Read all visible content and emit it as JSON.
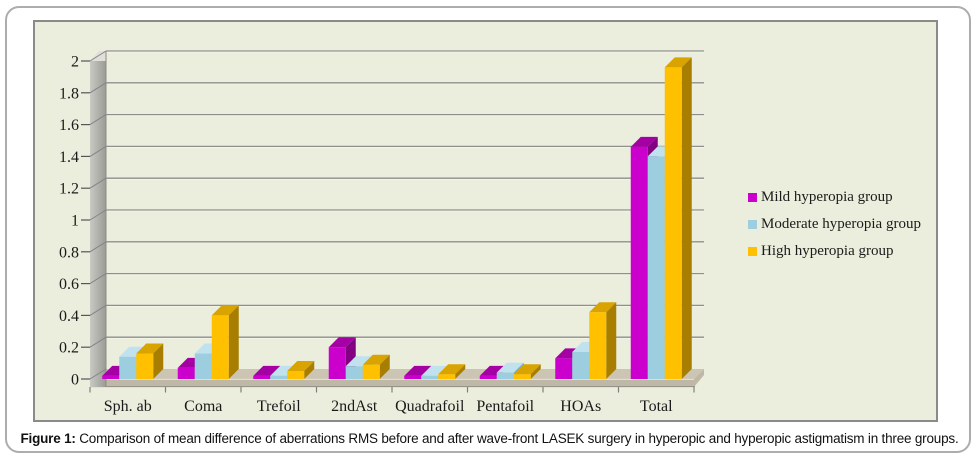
{
  "figure": {
    "caption_prefix": "Figure 1:",
    "caption_text": " Comparison of mean difference of aberrations RMS before and after wave-front LASEK surgery in hyperopic and hyperopic astigmatism in three groups."
  },
  "chart_data": {
    "type": "bar",
    "style": "3d-clustered-column",
    "title": "",
    "xlabel": "",
    "ylabel": "",
    "ylim": [
      0,
      2
    ],
    "grid": true,
    "legend_position": "right",
    "categories": [
      "Sph. ab",
      "Coma",
      "Trefoil",
      "2ndAst",
      "Quadrafoil",
      "Pentafoil",
      "HOAs",
      "Total"
    ],
    "series": [
      {
        "name": "Mild hyperopia group",
        "color": "#cc00cc",
        "top_color": "#a400a4",
        "side_color": "#830083",
        "values": [
          0.02,
          0.07,
          0.02,
          0.2,
          0.02,
          0.02,
          0.13,
          1.46
        ]
      },
      {
        "name": "Moderate hyperopia group",
        "color": "#9ccee0",
        "top_color": "#c0e2ee",
        "side_color": "#78aec4",
        "values": [
          0.14,
          0.16,
          0.02,
          0.08,
          0.02,
          0.04,
          0.17,
          1.4
        ]
      },
      {
        "name": "High hyperopia group",
        "color": "#ffc000",
        "top_color": "#d9a300",
        "side_color": "#a87e00",
        "values": [
          0.16,
          0.4,
          0.05,
          0.09,
          0.03,
          0.03,
          0.42,
          1.96
        ]
      }
    ],
    "y_ticks": [
      {
        "value": 0,
        "label": "0"
      },
      {
        "value": 0.2,
        "label": "0.2"
      },
      {
        "value": 0.4,
        "label": "0.4"
      },
      {
        "value": 0.6,
        "label": "0.6"
      },
      {
        "value": 0.8,
        "label": "0.8"
      },
      {
        "value": 1,
        "label": "1"
      },
      {
        "value": 1.2,
        "label": "1.2"
      },
      {
        "value": 1.4,
        "label": "1.4"
      },
      {
        "value": 1.6,
        "label": "1.6"
      },
      {
        "value": 1.8,
        "label": "1.8"
      },
      {
        "value": 2,
        "label": "2"
      }
    ],
    "colors": {
      "plot_bg": "#ebeedd",
      "chart_border": "#8a8a8a",
      "frame_border": "#adadad",
      "gridline": "#8f8f8f",
      "gridline_highlight": "#f7f8ec",
      "wall_light": "#c9c9c3",
      "wall_dark": "#9b9b96",
      "wall_bevel": "#e0e0d9",
      "floor_top": "#cdc5b4",
      "floor_front": "#c0b8a7",
      "floor_highlight": "#e9e3d3",
      "tick": "#55555a",
      "text": "#1a1a1a"
    }
  }
}
